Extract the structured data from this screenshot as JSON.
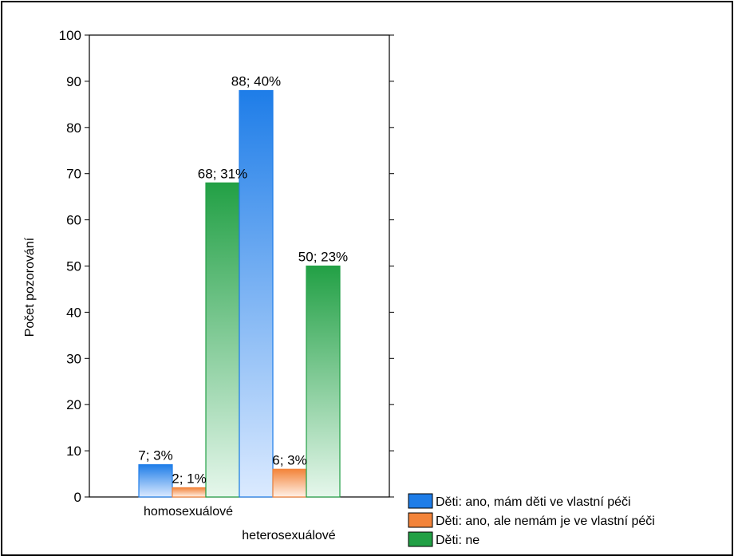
{
  "chart_data": {
    "type": "bar",
    "title": "",
    "xlabel": "",
    "ylabel": "Počet pozorování",
    "ylim": [
      0,
      100
    ],
    "yticks": [
      0,
      10,
      20,
      30,
      40,
      50,
      60,
      70,
      80,
      90,
      100
    ],
    "grid": false,
    "categories": [
      "homosexuálové",
      "heterosexuálové"
    ],
    "series": [
      {
        "name": "Děti: ano, mám děti ve vlastní péči",
        "values": [
          7,
          88
        ],
        "labels": [
          "7; 3%",
          "88; 40%"
        ],
        "color": "#1e7de8",
        "light": "#dbeaff"
      },
      {
        "name": "Děti: ano, ale nemám je ve vlastní péči",
        "values": [
          2,
          6
        ],
        "labels": [
          "2; 1%",
          "6; 3%"
        ],
        "color": "#f3843a",
        "light": "#fff1e7"
      },
      {
        "name": "Děti: ne",
        "values": [
          68,
          50
        ],
        "labels": [
          "68; 31%",
          "50; 23%"
        ],
        "color": "#22a045",
        "light": "#e6f7ec"
      }
    ],
    "legend_position": "bottom-right"
  }
}
